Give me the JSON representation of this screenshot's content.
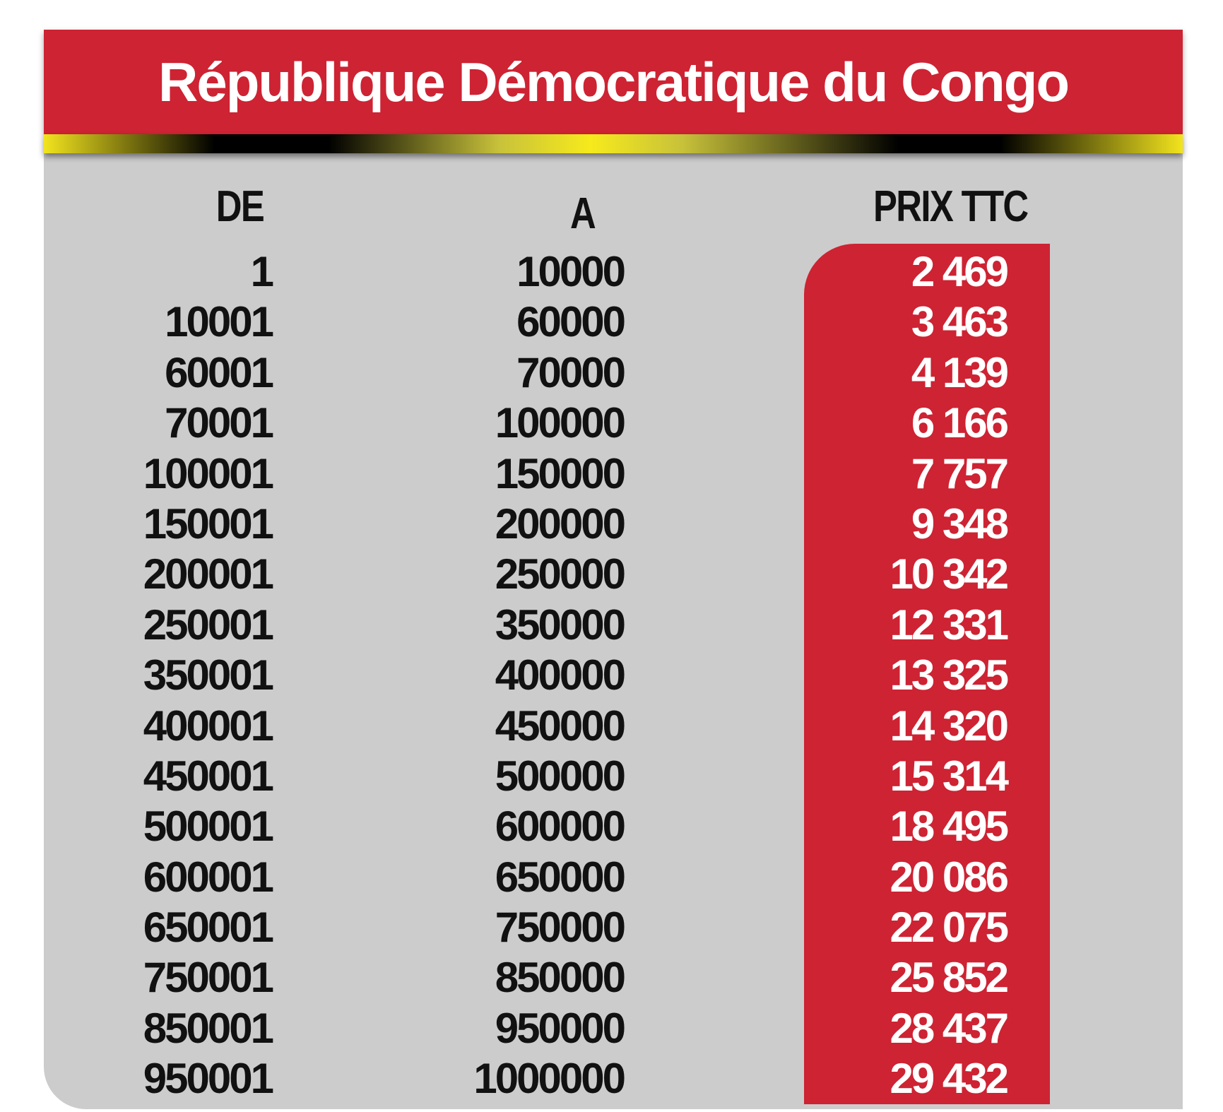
{
  "title": "République Démocratique du Congo",
  "headers": {
    "de": "DE",
    "a": "A",
    "prix": "PRIX TTC"
  },
  "rows": [
    {
      "de": "1",
      "a": "10000",
      "prix": "2 469"
    },
    {
      "de": "10001",
      "a": "60000",
      "prix": "3 463"
    },
    {
      "de": "60001",
      "a": "70000",
      "prix": "4 139"
    },
    {
      "de": "70001",
      "a": "100000",
      "prix": "6 166"
    },
    {
      "de": "100001",
      "a": "150000",
      "prix": "7 757"
    },
    {
      "de": "150001",
      "a": "200000",
      "prix": "9 348"
    },
    {
      "de": "200001",
      "a": "250000",
      "prix": "10 342"
    },
    {
      "de": "250001",
      "a": "350000",
      "prix": "12 331"
    },
    {
      "de": "350001",
      "a": "400000",
      "prix": "13 325"
    },
    {
      "de": "400001",
      "a": "450000",
      "prix": "14 320"
    },
    {
      "de": "450001",
      "a": "500000",
      "prix": "15 314"
    },
    {
      "de": "500001",
      "a": "600000",
      "prix": "18 495"
    },
    {
      "de": "600001",
      "a": "650000",
      "prix": "20 086"
    },
    {
      "de": "650001",
      "a": "750000",
      "prix": "22 075"
    },
    {
      "de": "750001",
      "a": "850000",
      "prix": "25 852"
    },
    {
      "de": "850001",
      "a": "950000",
      "prix": "28 437"
    },
    {
      "de": "950001",
      "a": "1000000",
      "prix": "29 432"
    }
  ],
  "colors": {
    "banner_red": "#cd2333",
    "panel_gray": "#cccccc",
    "stripe_yellow": "#f6ea1c",
    "stripe_black": "#000000"
  }
}
